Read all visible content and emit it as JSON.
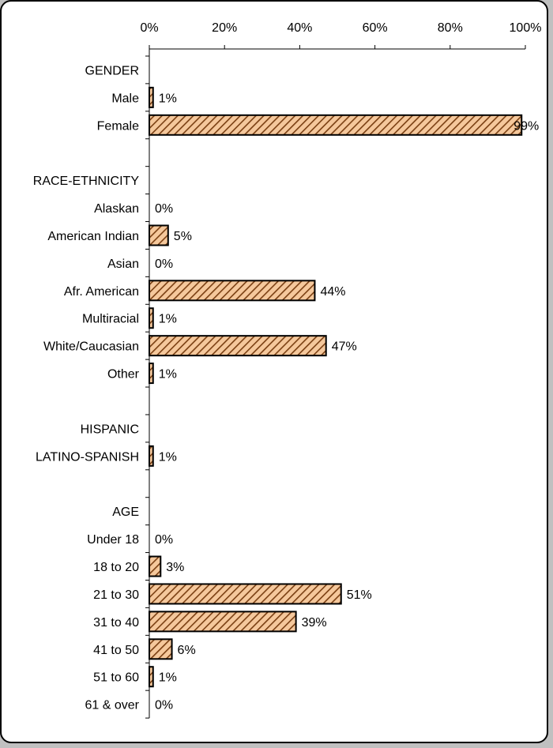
{
  "chart_data": {
    "type": "bar",
    "orientation": "horizontal",
    "title": "",
    "xlabel": "",
    "ylabel": "",
    "xlim": [
      0,
      100
    ],
    "x_ticks": [
      "0%",
      "20%",
      "40%",
      "60%",
      "80%",
      "100%"
    ],
    "x_tick_values": [
      0,
      20,
      40,
      60,
      80,
      100
    ],
    "grid": false,
    "legend": "none",
    "colors": {
      "bar_fill": "#f5c89c",
      "bar_hatch": "#7a3f12",
      "bar_stroke": "#000000"
    },
    "categories": [
      "GENDER",
      "Male",
      "Female",
      "",
      "RACE-ETHNICITY",
      "Alaskan",
      "American Indian",
      "Asian",
      "Afr. American",
      "Multiracial",
      "White/Caucasian",
      "Other",
      "",
      "HISPANIC",
      "LATINO-SPANISH",
      "",
      "AGE",
      "Under 18",
      "18 to 20",
      "21 to 30",
      "31 to 40",
      "41 to 50",
      "51 to 60",
      "61 & over"
    ],
    "values": [
      null,
      1,
      99,
      null,
      null,
      0,
      5,
      0,
      44,
      1,
      47,
      1,
      null,
      null,
      1,
      null,
      null,
      0,
      3,
      51,
      39,
      6,
      1,
      0
    ],
    "data_labels": [
      "",
      "1%",
      "99%",
      "",
      "",
      "0%",
      "5%",
      "0%",
      "44%",
      "1%",
      "47%",
      "1%",
      "",
      "",
      "1%",
      "",
      "",
      "0%",
      "3%",
      "51%",
      "39%",
      "6%",
      "1%",
      "0%"
    ]
  }
}
